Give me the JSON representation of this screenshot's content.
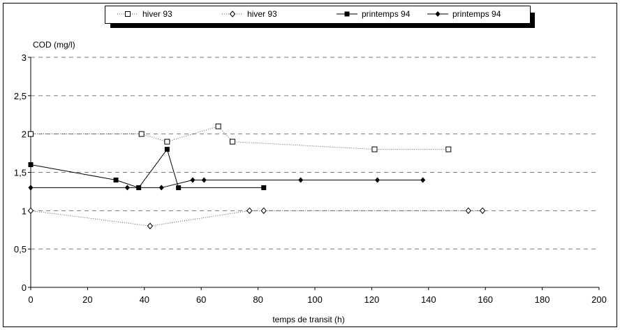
{
  "chart_data": {
    "type": "line",
    "xlabel": "temps de transit (h)",
    "ylabel": "COD (mg/l)",
    "xlim": [
      0,
      200
    ],
    "ylim": [
      0,
      3
    ],
    "xticks": [
      "0",
      "20",
      "40",
      "60",
      "80",
      "100",
      "120",
      "140",
      "160",
      "180",
      "200"
    ],
    "yticks": [
      "0",
      "0,5",
      "1",
      "1,5",
      "2",
      "2,5",
      "3"
    ],
    "grid": "horizontal dashed",
    "legend_position": "top",
    "series": [
      {
        "name": "hiver 93",
        "marker": "open-square",
        "line": "dotted",
        "x": [
          0,
          39,
          48,
          66,
          71,
          121,
          147
        ],
        "y": [
          2.0,
          2.0,
          1.9,
          2.1,
          1.9,
          1.8,
          1.8
        ]
      },
      {
        "name": "hiver 93",
        "marker": "open-diamond",
        "line": "dotted",
        "x": [
          0,
          42,
          77,
          82,
          154,
          159
        ],
        "y": [
          1.0,
          0.8,
          1.0,
          1.0,
          1.0,
          1.0
        ]
      },
      {
        "name": "printemps 94",
        "marker": "filled-square",
        "line": "solid",
        "x": [
          0,
          30,
          38,
          48,
          52,
          82
        ],
        "y": [
          1.6,
          1.4,
          1.3,
          1.8,
          1.3,
          1.3
        ]
      },
      {
        "name": "printemps 94",
        "marker": "filled-diamond",
        "line": "solid",
        "x": [
          0,
          34,
          46,
          57,
          61,
          95,
          122,
          138
        ],
        "y": [
          1.3,
          1.3,
          1.3,
          1.4,
          1.4,
          1.4,
          1.4,
          1.4
        ]
      }
    ]
  }
}
